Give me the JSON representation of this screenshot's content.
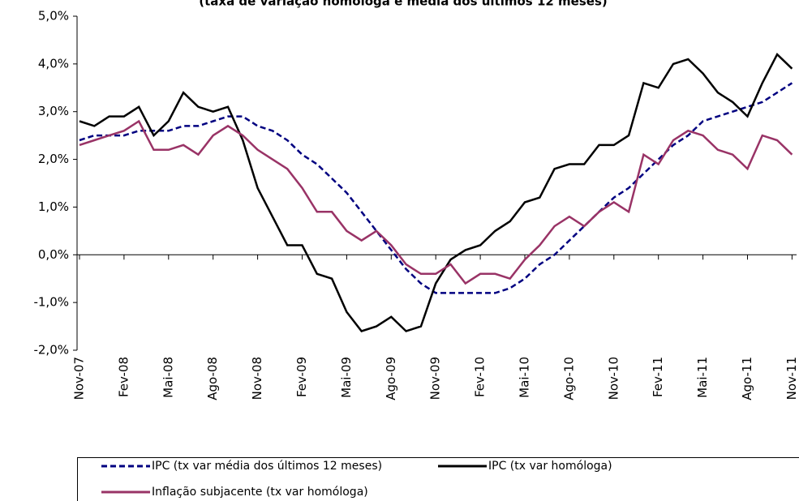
{
  "chart_data": {
    "type": "line",
    "title": "(taxa de variação homóloga e média dos últimos 12 meses)",
    "categories": [
      "Nov-07",
      null,
      null,
      "Fev-08",
      null,
      null,
      "Mai-08",
      null,
      null,
      "Ago-08",
      null,
      null,
      "Nov-08",
      null,
      null,
      "Fev-09",
      null,
      null,
      "Mai-09",
      null,
      null,
      "Ago-09",
      null,
      null,
      "Nov-09",
      null,
      null,
      "Fev-10",
      null,
      null,
      "Mai-10",
      null,
      null,
      "Ago-10",
      null,
      null,
      "Nov-10",
      null,
      null,
      "Fev-11",
      null,
      null,
      "Mai-11",
      null,
      null,
      "Ago-11",
      null,
      null,
      "Nov-11"
    ],
    "series": [
      {
        "name": "IPC (tx var média dos últimos 12 meses)",
        "color": "#000080",
        "dashed": true,
        "values": [
          2.4,
          2.5,
          2.5,
          2.5,
          2.6,
          2.6,
          2.6,
          2.7,
          2.7,
          2.8,
          2.9,
          2.9,
          2.7,
          2.6,
          2.4,
          2.1,
          1.9,
          1.6,
          1.3,
          0.9,
          0.5,
          0.1,
          -0.3,
          -0.6,
          -0.8,
          -0.8,
          -0.8,
          -0.8,
          -0.8,
          -0.7,
          -0.5,
          -0.2,
          0.0,
          0.3,
          0.6,
          0.9,
          1.2,
          1.4,
          1.7,
          2.0,
          2.3,
          2.5,
          2.8,
          2.9,
          3.0,
          3.1,
          3.2,
          3.4,
          3.6
        ]
      },
      {
        "name": "IPC (tx var homóloga)",
        "color": "#000000",
        "dashed": false,
        "values": [
          2.8,
          2.7,
          2.9,
          2.9,
          3.1,
          2.5,
          2.8,
          3.4,
          3.1,
          3.0,
          3.1,
          2.4,
          1.4,
          0.8,
          0.2,
          0.2,
          -0.4,
          -0.5,
          -1.2,
          -1.6,
          -1.5,
          -1.3,
          -1.6,
          -1.5,
          -0.6,
          -0.1,
          0.1,
          0.2,
          0.5,
          0.7,
          1.1,
          1.2,
          1.8,
          1.9,
          1.9,
          2.3,
          2.3,
          2.5,
          3.6,
          3.5,
          4.0,
          4.1,
          3.8,
          3.4,
          3.2,
          2.9,
          3.6,
          4.2,
          3.9
        ]
      },
      {
        "name": "Inflação subjacente (tx var homóloga)",
        "color": "#993366",
        "dashed": false,
        "values": [
          2.3,
          2.4,
          2.5,
          2.6,
          2.8,
          2.2,
          2.2,
          2.3,
          2.1,
          2.5,
          2.7,
          2.5,
          2.2,
          2.0,
          1.8,
          1.4,
          0.9,
          0.9,
          0.5,
          0.3,
          0.5,
          0.2,
          -0.2,
          -0.4,
          -0.4,
          -0.2,
          -0.6,
          -0.4,
          -0.4,
          -0.5,
          -0.1,
          0.2,
          0.6,
          0.8,
          0.6,
          0.9,
          1.1,
          0.9,
          2.1,
          1.9,
          2.4,
          2.6,
          2.5,
          2.2,
          2.1,
          1.8,
          2.5,
          2.4,
          2.1
        ]
      }
    ],
    "ylim": [
      -2,
      5
    ],
    "yticks": [
      {
        "value": -2,
        "label": "-2,0%"
      },
      {
        "value": -1,
        "label": "-1,0%"
      },
      {
        "value": 0,
        "label": "0,0%"
      },
      {
        "value": 1,
        "label": "1,0%"
      },
      {
        "value": 2,
        "label": "2,0%"
      },
      {
        "value": 3,
        "label": "3,0%"
      },
      {
        "value": 4,
        "label": "4,0%"
      },
      {
        "value": 5,
        "label": "5,0%"
      }
    ],
    "grid": false,
    "legend": "bottom"
  }
}
